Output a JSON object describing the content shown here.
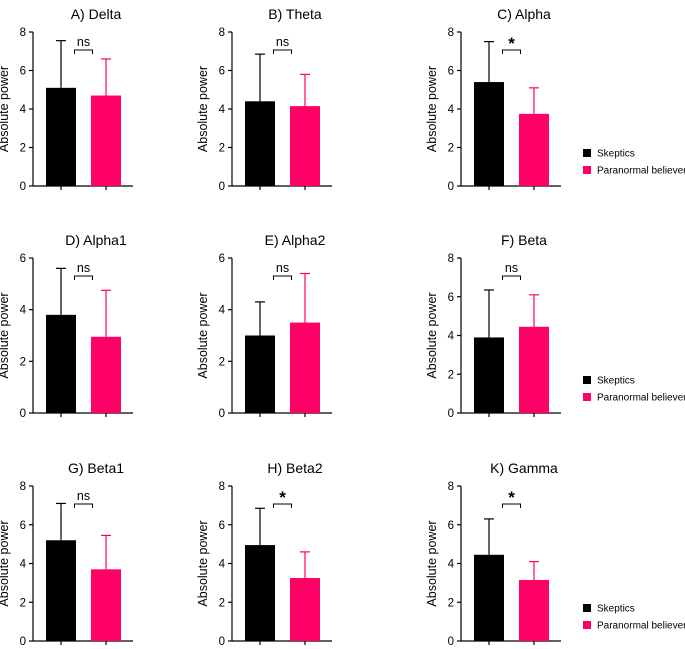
{
  "colors": {
    "skeptics": "#000000",
    "believers": "#ff0066",
    "axis": "#000000"
  },
  "legend": [
    {
      "label": "Skeptics",
      "color": "#000000"
    },
    {
      "label": "Paranormal believers",
      "color": "#ff0066"
    }
  ],
  "chart_data": [
    {
      "type": "bar",
      "title": "A) Delta",
      "ylabel": "Absolute power",
      "ylim": [
        0,
        8
      ],
      "yticks": [
        "0",
        "2",
        "4",
        "6",
        "8"
      ],
      "series": [
        {
          "name": "Skeptics",
          "value": 5.1,
          "error": 2.45
        },
        {
          "name": "Paranormal believers",
          "value": 4.7,
          "error": 1.9
        }
      ],
      "significance": "ns",
      "legend": false
    },
    {
      "type": "bar",
      "title": "B) Theta",
      "ylabel": "Absolute power",
      "ylim": [
        0,
        8
      ],
      "yticks": [
        "0",
        "2",
        "4",
        "6",
        "8"
      ],
      "series": [
        {
          "name": "Skeptics",
          "value": 4.4,
          "error": 2.45
        },
        {
          "name": "Paranormal believers",
          "value": 4.15,
          "error": 1.65
        }
      ],
      "significance": "ns",
      "legend": false
    },
    {
      "type": "bar",
      "title": "C) Alpha",
      "ylabel": "Absolute power",
      "ylim": [
        0,
        8
      ],
      "yticks": [
        "0",
        "2",
        "4",
        "6",
        "8"
      ],
      "series": [
        {
          "name": "Skeptics",
          "value": 5.4,
          "error": 2.1
        },
        {
          "name": "Paranormal believers",
          "value": 3.75,
          "error": 1.35
        }
      ],
      "significance": "*",
      "legend": true
    },
    {
      "type": "bar",
      "title": "D) Alpha1",
      "ylabel": "Absolute power",
      "ylim": [
        0,
        6
      ],
      "yticks": [
        "0",
        "2",
        "4",
        "6"
      ],
      "series": [
        {
          "name": "Skeptics",
          "value": 3.8,
          "error": 1.8
        },
        {
          "name": "Paranormal believers",
          "value": 2.95,
          "error": 1.8
        }
      ],
      "significance": "ns",
      "legend": false
    },
    {
      "type": "bar",
      "title": "E) Alpha2",
      "ylabel": "Absolute power",
      "ylim": [
        0,
        6
      ],
      "yticks": [
        "0",
        "2",
        "4",
        "6"
      ],
      "series": [
        {
          "name": "Skeptics",
          "value": 3.0,
          "error": 1.3
        },
        {
          "name": "Paranormal believers",
          "value": 3.5,
          "error": 1.9
        }
      ],
      "significance": "ns",
      "legend": false
    },
    {
      "type": "bar",
      "title": "F) Beta",
      "ylabel": "Absolute power",
      "ylim": [
        0,
        8
      ],
      "yticks": [
        "0",
        "2",
        "4",
        "6",
        "8"
      ],
      "series": [
        {
          "name": "Skeptics",
          "value": 3.9,
          "error": 2.45
        },
        {
          "name": "Paranormal believers",
          "value": 4.45,
          "error": 1.65
        }
      ],
      "significance": "ns",
      "legend": true
    },
    {
      "type": "bar",
      "title": "G) Beta1",
      "ylabel": "Absolute power",
      "ylim": [
        0,
        8
      ],
      "yticks": [
        "0",
        "2",
        "4",
        "6",
        "8"
      ],
      "series": [
        {
          "name": "Skeptics",
          "value": 5.2,
          "error": 1.9
        },
        {
          "name": "Paranormal believers",
          "value": 3.7,
          "error": 1.75
        }
      ],
      "significance": "ns",
      "legend": false
    },
    {
      "type": "bar",
      "title": "H) Beta2",
      "ylabel": "Absolute power",
      "ylim": [
        0,
        8
      ],
      "yticks": [
        "0",
        "2",
        "4",
        "6",
        "8"
      ],
      "series": [
        {
          "name": "Skeptics",
          "value": 4.95,
          "error": 1.9
        },
        {
          "name": "Paranormal believers",
          "value": 3.25,
          "error": 1.35
        }
      ],
      "significance": "*",
      "legend": false
    },
    {
      "type": "bar",
      "title": "K) Gamma",
      "ylabel": "Absolute power",
      "ylim": [
        0,
        8
      ],
      "yticks": [
        "0",
        "2",
        "4",
        "6",
        "8"
      ],
      "series": [
        {
          "name": "Skeptics",
          "value": 4.45,
          "error": 1.85
        },
        {
          "name": "Paranormal believers",
          "value": 3.15,
          "error": 0.95
        }
      ],
      "significance": "*",
      "legend": true
    }
  ]
}
